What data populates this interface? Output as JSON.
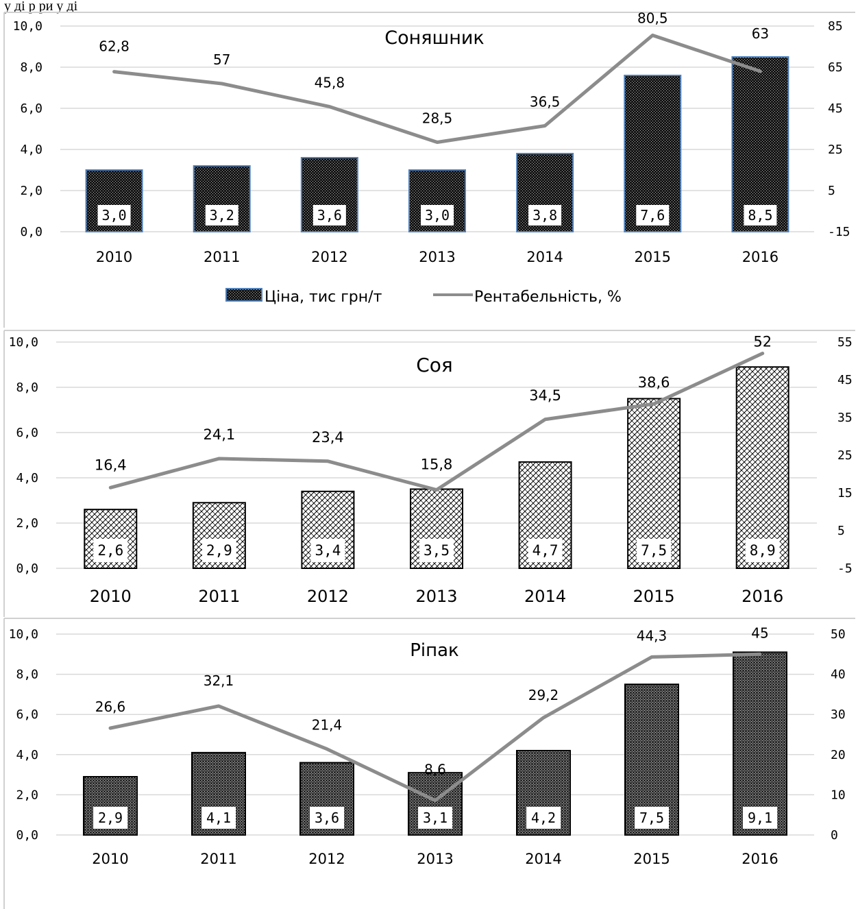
{
  "caption": "у            ді     р   ри у  ді",
  "legend": {
    "bar_label": "Ціна, тис грн/т",
    "line_label": "Рентабельність, %"
  },
  "colors": {
    "line": "#8c8c8c",
    "bar_fill": "#1a1a1a",
    "bar_stroke_top": "#4f81bd",
    "bar_stroke": "#000000",
    "grid": "#d9d9d9"
  },
  "chart_data": [
    {
      "type": "bar",
      "title": "Соняшник",
      "categories": [
        "2010",
        "2011",
        "2012",
        "2013",
        "2014",
        "2015",
        "2016"
      ],
      "series": [
        {
          "name": "Ціна, тис грн/т",
          "axis": "left",
          "values": [
            3.0,
            3.2,
            3.6,
            3.0,
            3.8,
            7.6,
            8.5
          ],
          "labels": [
            "3,0",
            "3,2",
            "3,6",
            "3,0",
            "3,8",
            "7,6",
            "8,5"
          ]
        },
        {
          "name": "Рентабельність, %",
          "type": "line",
          "axis": "right",
          "values": [
            62.8,
            57,
            45.8,
            28.5,
            36.5,
            80.5,
            63
          ],
          "labels": [
            "62,8",
            "57",
            "45,8",
            "28,5",
            "36,5",
            "80,5",
            "63"
          ]
        }
      ],
      "ylim": [
        0,
        10
      ],
      "yticks": [
        "0,0",
        "2,0",
        "4,0",
        "6,0",
        "8,0",
        "10,0"
      ],
      "y2lim": [
        -15,
        85
      ],
      "y2ticks": [
        "-15",
        "5",
        "25",
        "45",
        "65",
        "85"
      ],
      "grid": true,
      "legend": "bottom"
    },
    {
      "type": "bar",
      "title": "Соя",
      "categories": [
        "2010",
        "2011",
        "2012",
        "2013",
        "2014",
        "2015",
        "2016"
      ],
      "series": [
        {
          "axis": "left",
          "values": [
            2.6,
            2.9,
            3.4,
            3.5,
            4.7,
            7.5,
            8.9
          ],
          "labels": [
            "2,6",
            "2,9",
            "3,4",
            "3,5",
            "4,7",
            "7,5",
            "8,9"
          ]
        },
        {
          "type": "line",
          "axis": "right",
          "values": [
            16.4,
            24.1,
            23.4,
            15.8,
            34.5,
            38.6,
            52
          ],
          "labels": [
            "16,4",
            "24,1",
            "23,4",
            "15,8",
            "34,5",
            "38,6",
            "52"
          ]
        }
      ],
      "ylim": [
        0,
        10
      ],
      "yticks": [
        "0,0",
        "2,0",
        "4,0",
        "6,0",
        "8,0",
        "10,0"
      ],
      "y2lim": [
        -5,
        55
      ],
      "y2ticks": [
        "-5",
        "5",
        "15",
        "25",
        "35",
        "45",
        "55"
      ],
      "grid": true
    },
    {
      "type": "bar",
      "title": "Ріпак",
      "categories": [
        "2010",
        "2011",
        "2012",
        "2013",
        "2014",
        "2015",
        "2016"
      ],
      "series": [
        {
          "axis": "left",
          "values": [
            2.9,
            4.1,
            3.6,
            3.1,
            4.2,
            7.5,
            9.1
          ],
          "labels": [
            "2,9",
            "4,1",
            "3,6",
            "3,1",
            "4,2",
            "7,5",
            "9,1"
          ]
        },
        {
          "type": "line",
          "axis": "right",
          "values": [
            26.6,
            32.1,
            21.4,
            8.6,
            29.2,
            44.3,
            45
          ],
          "labels": [
            "26,6",
            "32,1",
            "21,4",
            "8,6",
            "29,2",
            "44,3",
            "45"
          ]
        }
      ],
      "ylim": [
        0,
        10
      ],
      "yticks": [
        "0,0",
        "2,0",
        "4,0",
        "6,0",
        "8,0",
        "10,0"
      ],
      "y2lim": [
        0,
        50
      ],
      "y2ticks": [
        "0",
        "10",
        "20",
        "30",
        "40",
        "50"
      ],
      "grid": true
    }
  ]
}
